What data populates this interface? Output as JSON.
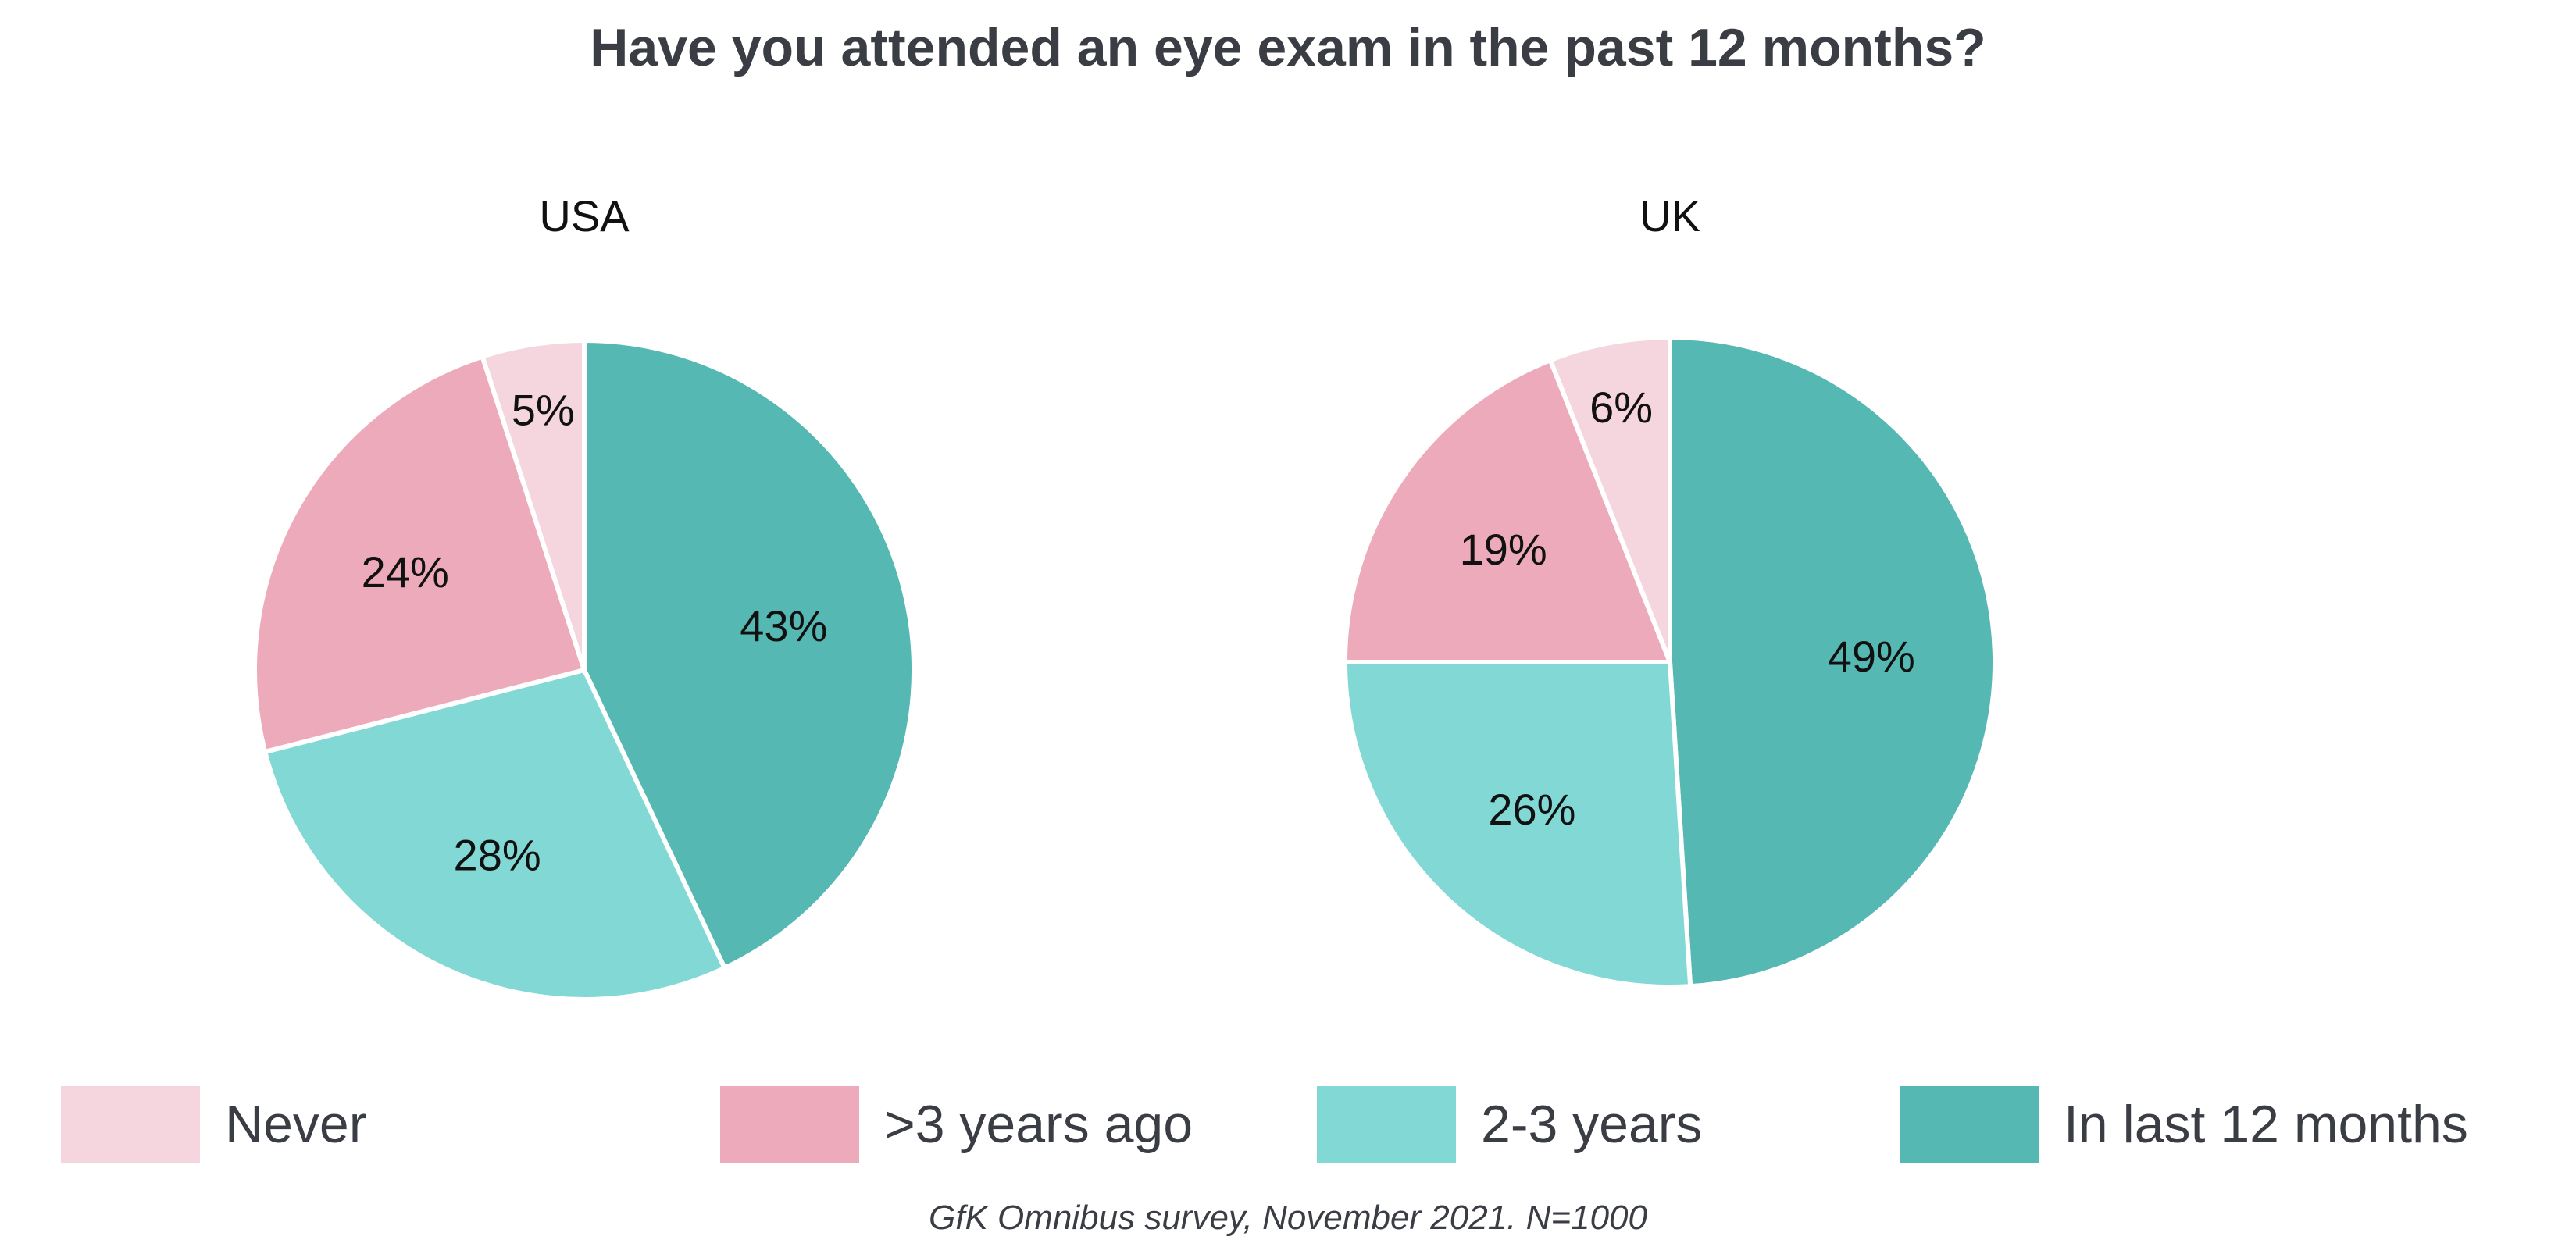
{
  "title": "Have you attended an eye exam in the past 12 months?",
  "source": "GfK Omnibus survey, November 2021. N=1000",
  "colors": {
    "Never": "#f5d6df",
    ">3 years ago": "#edaabb",
    "2-3 years": "#82d8d4",
    "In last 12 months": "#55b8b2"
  },
  "legend": [
    {
      "label": "Never",
      "color": "#f5d6df"
    },
    {
      "label": ">3 years ago",
      "color": "#edaabb"
    },
    {
      "label": "2-3 years",
      "color": "#82d8d4"
    },
    {
      "label": "In last 12 months",
      "color": "#55b8b2"
    }
  ],
  "chart_data": [
    {
      "type": "pie",
      "title": "USA",
      "categories": [
        "In last 12 months",
        "2-3 years",
        ">3 years ago",
        "Never"
      ],
      "values": [
        43,
        28,
        24,
        5
      ],
      "labels": [
        "43%",
        "28%",
        "24%",
        "5%"
      ]
    },
    {
      "type": "pie",
      "title": "UK",
      "categories": [
        "In last 12 months",
        "2-3 years",
        ">3 years ago",
        "Never"
      ],
      "values": [
        49,
        26,
        19,
        6
      ],
      "labels": [
        "49%",
        "26%",
        "19%",
        "6%"
      ]
    }
  ]
}
